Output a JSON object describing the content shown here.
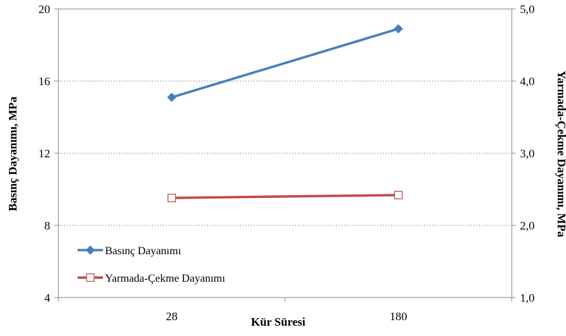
{
  "chart_data": {
    "type": "line",
    "categories": [
      "28",
      "180"
    ],
    "xlabel": "Kür Süresi",
    "ylabel": "Basınç Dayanımı, MPa",
    "y2label": "Yarmada-Çekme Dayanımı, MPa",
    "ylim": [
      4,
      20
    ],
    "y2lim": [
      1.0,
      5.0
    ],
    "yticks": [
      "4",
      "8",
      "12",
      "16",
      "20"
    ],
    "y2ticks": [
      "1,0",
      "2,0",
      "3,0",
      "4,0",
      "5,0"
    ],
    "grid": true,
    "legend_position": "bottom-left",
    "series": [
      {
        "name": "Basınç Dayanımı",
        "axis": "left",
        "values": [
          15.1,
          18.9
        ],
        "color": "#4a7ebb",
        "marker": "diamond"
      },
      {
        "name": "Yarmada-Çekme Dayanımı",
        "axis": "right",
        "values": [
          2.38,
          2.42
        ],
        "color": "#be4b48",
        "marker": "open-square"
      }
    ]
  }
}
